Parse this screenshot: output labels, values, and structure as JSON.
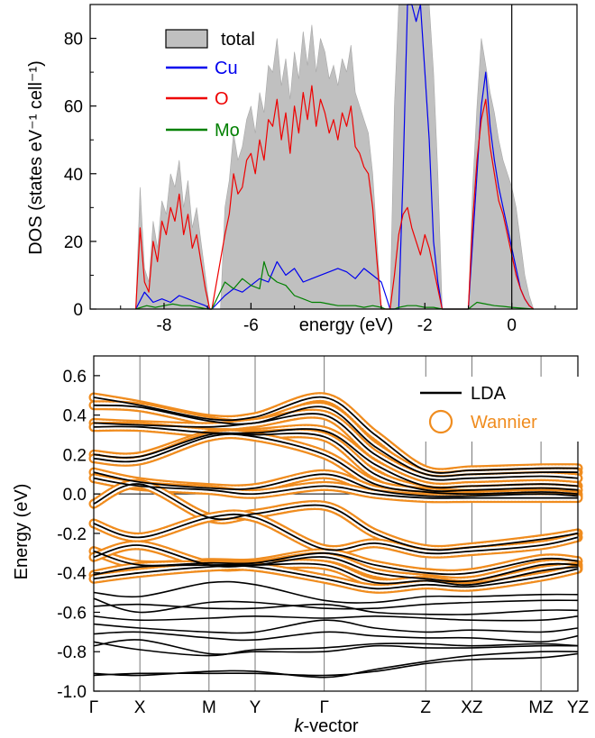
{
  "chart_data": [
    {
      "type": "area",
      "xlabel": "energy (eV)",
      "ylabel": "DOS (states eV⁻¹ cell⁻¹)",
      "xlim": [
        -9.7,
        1.5
      ],
      "ylim": [
        0,
        90
      ],
      "xticks": [
        -8,
        -6,
        -2,
        0
      ],
      "xtick_labels": [
        "-8",
        "-6",
        "-2",
        "0"
      ],
      "yticks": [
        0,
        20,
        40,
        60,
        80
      ],
      "ytick_labels": [
        "0",
        "20",
        "40",
        "60",
        "80"
      ],
      "fermi_level": 0,
      "legend": {
        "position": "top-left"
      },
      "series": [
        {
          "name": "total",
          "style": "filled",
          "color": "#c0c0c0",
          "x": [
            -8.65,
            -8.55,
            -8.45,
            -8.35,
            -8.25,
            -8.15,
            -8.05,
            -7.95,
            -7.85,
            -7.75,
            -7.65,
            -7.55,
            -7.45,
            -7.35,
            -7.25,
            -7.15,
            -7.05,
            -6.95,
            -6.9,
            -6.8,
            -6.7,
            -6.6,
            -6.5,
            -6.4,
            -6.3,
            -6.2,
            -6.1,
            -6.0,
            -5.9,
            -5.8,
            -5.7,
            -5.6,
            -5.5,
            -5.4,
            -5.3,
            -5.2,
            -5.1,
            -5.0,
            -4.9,
            -4.8,
            -4.7,
            -4.6,
            -4.5,
            -4.4,
            -4.3,
            -4.2,
            -4.1,
            -4.0,
            -3.9,
            -3.8,
            -3.7,
            -3.6,
            -3.5,
            -3.4,
            -3.3,
            -3.2,
            -3.1,
            -3.0,
            -2.9,
            -2.8,
            -2.7,
            -2.6,
            -2.5,
            -2.4,
            -2.3,
            -2.2,
            -2.1,
            -2.0,
            -1.9,
            -1.8,
            -1.7,
            -1.6,
            -1.5,
            -1.4,
            -1.3,
            -1.2,
            -1.1,
            -1.0,
            -0.9,
            -0.8,
            -0.7,
            -0.6,
            -0.5,
            -0.4,
            -0.3,
            -0.2,
            -0.1,
            0.0,
            0.1,
            0.2,
            0.3,
            0.4,
            0.5
          ],
          "y": [
            0,
            36,
            12,
            8,
            26,
            18,
            32,
            28,
            40,
            36,
            44,
            30,
            38,
            24,
            30,
            20,
            10,
            0,
            0,
            0,
            0,
            30,
            38,
            52,
            44,
            48,
            56,
            60,
            52,
            64,
            58,
            72,
            70,
            80,
            66,
            74,
            62,
            76,
            68,
            82,
            72,
            84,
            70,
            80,
            76,
            68,
            72,
            66,
            74,
            70,
            78,
            64,
            60,
            56,
            52,
            40,
            20,
            0,
            0,
            0,
            60,
            90,
            90,
            90,
            90,
            90,
            90,
            90,
            90,
            70,
            40,
            0,
            0,
            0,
            0,
            0,
            0,
            0,
            36,
            60,
            80,
            72,
            64,
            58,
            50,
            44,
            40,
            36,
            30,
            20,
            10,
            4,
            0
          ]
        },
        {
          "name": "Cu",
          "style": "line",
          "color": "#0000ee",
          "x": [
            -8.65,
            -8.45,
            -8.25,
            -8.05,
            -7.85,
            -7.65,
            -7.45,
            -7.25,
            -7.05,
            -6.95,
            -6.9,
            -6.6,
            -6.4,
            -6.2,
            -6.0,
            -5.8,
            -5.6,
            -5.4,
            -5.2,
            -5.0,
            -4.8,
            -4.6,
            -4.4,
            -4.2,
            -4.0,
            -3.8,
            -3.6,
            -3.4,
            -3.2,
            -3.0,
            -2.9,
            -2.8,
            -2.7,
            -2.6,
            -2.5,
            -2.4,
            -2.3,
            -2.2,
            -2.1,
            -2.0,
            -1.9,
            -1.8,
            -1.7,
            -1.6,
            -1.5,
            -1.4,
            -1.3,
            -1.2,
            -1.1,
            -1.0,
            -0.9,
            -0.8,
            -0.7,
            -0.6,
            -0.5,
            -0.4,
            -0.3,
            -0.2,
            -0.1,
            0.0,
            0.1,
            0.2,
            0.3,
            0.4,
            0.5
          ],
          "y": [
            0,
            5,
            2,
            3,
            2,
            4,
            3,
            2,
            1,
            0,
            0,
            4,
            6,
            5,
            7,
            9,
            8,
            14,
            10,
            12,
            8,
            9,
            10,
            11,
            12,
            11,
            9,
            12,
            10,
            8,
            4,
            0,
            0,
            0,
            40,
            90,
            90,
            85,
            90,
            70,
            50,
            20,
            8,
            0,
            0,
            0,
            0,
            0,
            0,
            0,
            20,
            40,
            60,
            70,
            54,
            44,
            36,
            30,
            24,
            18,
            12,
            6,
            3,
            1,
            0
          ]
        },
        {
          "name": "O",
          "style": "line",
          "color": "#ee0000",
          "x": [
            -8.65,
            -8.55,
            -8.45,
            -8.35,
            -8.25,
            -8.15,
            -8.05,
            -7.95,
            -7.85,
            -7.75,
            -7.65,
            -7.55,
            -7.45,
            -7.35,
            -7.25,
            -7.15,
            -7.05,
            -6.95,
            -6.9,
            -6.6,
            -6.5,
            -6.4,
            -6.3,
            -6.2,
            -6.1,
            -6.0,
            -5.9,
            -5.8,
            -5.7,
            -5.6,
            -5.5,
            -5.4,
            -5.3,
            -5.2,
            -5.1,
            -5.0,
            -4.9,
            -4.8,
            -4.7,
            -4.6,
            -4.5,
            -4.4,
            -4.3,
            -4.2,
            -4.1,
            -4.0,
            -3.9,
            -3.8,
            -3.7,
            -3.6,
            -3.5,
            -3.4,
            -3.3,
            -3.2,
            -3.1,
            -3.0,
            -2.9,
            -2.8,
            -2.7,
            -2.6,
            -2.5,
            -2.4,
            -2.3,
            -2.2,
            -2.1,
            -2.0,
            -1.9,
            -1.8,
            -1.7,
            -1.6,
            -1.0,
            -0.9,
            -0.8,
            -0.7,
            -0.6,
            -0.5,
            -0.4,
            -0.3,
            -0.2,
            -0.1,
            0.0,
            0.1,
            0.2,
            0.3,
            0.4,
            0.5
          ],
          "y": [
            0,
            24,
            8,
            5,
            20,
            14,
            26,
            22,
            30,
            26,
            34,
            22,
            28,
            18,
            22,
            14,
            6,
            0,
            0,
            22,
            28,
            40,
            34,
            36,
            44,
            46,
            40,
            50,
            44,
            56,
            54,
            62,
            50,
            58,
            46,
            60,
            52,
            64,
            56,
            66,
            54,
            62,
            58,
            52,
            56,
            50,
            58,
            54,
            60,
            48,
            46,
            42,
            40,
            30,
            14,
            0,
            0,
            0,
            10,
            22,
            28,
            30,
            24,
            20,
            16,
            22,
            18,
            12,
            6,
            0,
            0,
            26,
            44,
            56,
            62,
            48,
            40,
            32,
            28,
            22,
            16,
            10,
            6,
            3,
            1,
            0
          ]
        },
        {
          "name": "Mo",
          "style": "line",
          "color": "#008000",
          "x": [
            -8.65,
            -8.4,
            -8.2,
            -8.0,
            -7.8,
            -7.6,
            -7.4,
            -7.2,
            -7.0,
            -6.95,
            -6.9,
            -6.6,
            -6.4,
            -6.2,
            -6.0,
            -5.8,
            -5.7,
            -5.6,
            -5.4,
            -5.2,
            -5.0,
            -4.8,
            -4.6,
            -4.4,
            -4.2,
            -4.0,
            -3.8,
            -3.6,
            -3.4,
            -3.2,
            -3.0,
            -2.9,
            -2.8,
            -2.7,
            -2.6,
            -2.4,
            -2.2,
            -2.0,
            -1.8,
            -1.6,
            -1.4,
            -1.2,
            -1.0,
            -0.9,
            -0.8,
            -0.6,
            -0.4,
            -0.2,
            0.0,
            0.2,
            0.4,
            0.5
          ],
          "y": [
            0,
            1,
            0.5,
            1,
            1.5,
            1,
            1,
            0.5,
            0,
            0,
            0,
            8,
            6,
            9,
            7,
            6,
            14,
            10,
            8,
            7,
            4,
            3,
            2,
            2,
            1.5,
            1,
            1,
            1,
            0.5,
            1,
            0.5,
            0,
            0,
            0,
            0.5,
            1,
            1,
            0.5,
            0.5,
            0,
            0,
            0,
            0,
            1,
            2,
            1.5,
            1,
            0.8,
            0.5,
            0.3,
            0.1,
            0
          ]
        }
      ]
    },
    {
      "type": "line",
      "xlabel_italic": "k",
      "xlabel_rest": "-vector",
      "ylabel": "Energy (eV)",
      "ylim": [
        -1.0,
        0.7
      ],
      "yticks": [
        -1.0,
        -0.8,
        -0.6,
        -0.4,
        -0.2,
        0.0,
        0.2,
        0.4,
        0.6
      ],
      "ytick_labels": [
        "-1.0",
        "-0.8",
        "-0.6",
        "-0.4",
        "-0.2",
        "0.0",
        "0.2",
        "0.4",
        "0.6"
      ],
      "xlim": [
        0,
        10.5
      ],
      "kpoints": [
        0,
        1,
        2.5,
        3.5,
        5,
        7.2,
        8.2,
        9.7,
        10.5
      ],
      "kpoint_labels": [
        "Γ",
        "X",
        "M",
        "Y",
        "Γ",
        "Z",
        "XZ",
        "MZ",
        "YZ"
      ],
      "legend": {
        "position": "top-right"
      },
      "fermi_level": 0,
      "series": [
        {
          "name": "LDA",
          "color": "#000000"
        },
        {
          "name": "Wannier",
          "color": "#f08c1e"
        }
      ],
      "x": [
        0,
        1,
        2.5,
        3.5,
        5,
        6.1,
        7.2,
        8.2,
        9.7,
        10.5
      ],
      "wannier_bands": [
        [
          0.49,
          0.45,
          0.38,
          0.39,
          0.49,
          0.3,
          0.12,
          0.12,
          0.13,
          0.13
        ],
        [
          0.45,
          0.44,
          0.37,
          0.36,
          0.44,
          0.24,
          0.1,
          0.1,
          0.11,
          0.11
        ],
        [
          0.36,
          0.35,
          0.34,
          0.36,
          0.4,
          0.2,
          0.08,
          0.08,
          0.09,
          0.08
        ],
        [
          0.34,
          0.34,
          0.31,
          0.31,
          0.32,
          0.15,
          0.04,
          0.04,
          0.05,
          0.04
        ],
        [
          0.2,
          0.19,
          0.3,
          0.3,
          0.29,
          0.1,
          0.02,
          0.02,
          0.03,
          0.02
        ],
        [
          0.18,
          0.17,
          0.29,
          0.29,
          0.2,
          0.05,
          0.01,
          0.0,
          0.01,
          0.0
        ],
        [
          0.11,
          0.06,
          0.03,
          0.03,
          0.1,
          0.02,
          -0.01,
          -0.01,
          0.0,
          -0.01
        ],
        [
          0.08,
          0.04,
          0.02,
          0.0,
          0.04,
          0.0,
          -0.02,
          -0.02,
          -0.02,
          -0.02
        ],
        [
          -0.05,
          0.05,
          -0.12,
          -0.1,
          -0.06,
          -0.2,
          -0.28,
          -0.27,
          -0.23,
          -0.2
        ],
        [
          -0.15,
          -0.22,
          -0.12,
          -0.12,
          -0.28,
          -0.25,
          -0.3,
          -0.29,
          -0.26,
          -0.22
        ],
        [
          -0.29,
          -0.36,
          -0.35,
          -0.35,
          -0.3,
          -0.36,
          -0.4,
          -0.4,
          -0.33,
          -0.34
        ],
        [
          -0.32,
          -0.26,
          -0.36,
          -0.36,
          -0.32,
          -0.4,
          -0.43,
          -0.44,
          -0.36,
          -0.36
        ],
        [
          -0.41,
          -0.37,
          -0.36,
          -0.36,
          -0.36,
          -0.45,
          -0.44,
          -0.46,
          -0.39,
          -0.37
        ],
        [
          -0.43,
          -0.4,
          -0.37,
          -0.37,
          -0.43,
          -0.48,
          -0.46,
          -0.47,
          -0.42,
          -0.38
        ]
      ],
      "lda_extra_bands": [
        [
          -0.5,
          -0.52,
          -0.45,
          -0.46,
          -0.54,
          -0.55,
          -0.52,
          -0.52,
          -0.51,
          -0.51
        ],
        [
          -0.53,
          -0.6,
          -0.55,
          -0.55,
          -0.58,
          -0.58,
          -0.56,
          -0.55,
          -0.54,
          -0.54
        ],
        [
          -0.57,
          -0.56,
          -0.58,
          -0.58,
          -0.56,
          -0.6,
          -0.61,
          -0.61,
          -0.59,
          -0.59
        ],
        [
          -0.62,
          -0.64,
          -0.63,
          -0.62,
          -0.63,
          -0.62,
          -0.63,
          -0.64,
          -0.64,
          -0.62
        ],
        [
          -0.66,
          -0.68,
          -0.7,
          -0.7,
          -0.64,
          -0.68,
          -0.7,
          -0.69,
          -0.7,
          -0.68
        ],
        [
          -0.71,
          -0.7,
          -0.73,
          -0.74,
          -0.7,
          -0.72,
          -0.73,
          -0.73,
          -0.75,
          -0.72
        ],
        [
          -0.75,
          -0.79,
          -0.82,
          -0.79,
          -0.78,
          -0.76,
          -0.76,
          -0.77,
          -0.76,
          -0.77
        ],
        [
          -0.77,
          -0.74,
          -0.81,
          -0.8,
          -0.8,
          -0.77,
          -0.78,
          -0.78,
          -0.77,
          -0.77
        ],
        [
          -0.91,
          -0.92,
          -0.9,
          -0.9,
          -0.93,
          -0.89,
          -0.85,
          -0.82,
          -0.8,
          -0.8
        ],
        [
          -0.92,
          -0.91,
          -0.91,
          -0.91,
          -0.92,
          -0.9,
          -0.86,
          -0.84,
          -0.83,
          -0.81
        ]
      ]
    }
  ]
}
